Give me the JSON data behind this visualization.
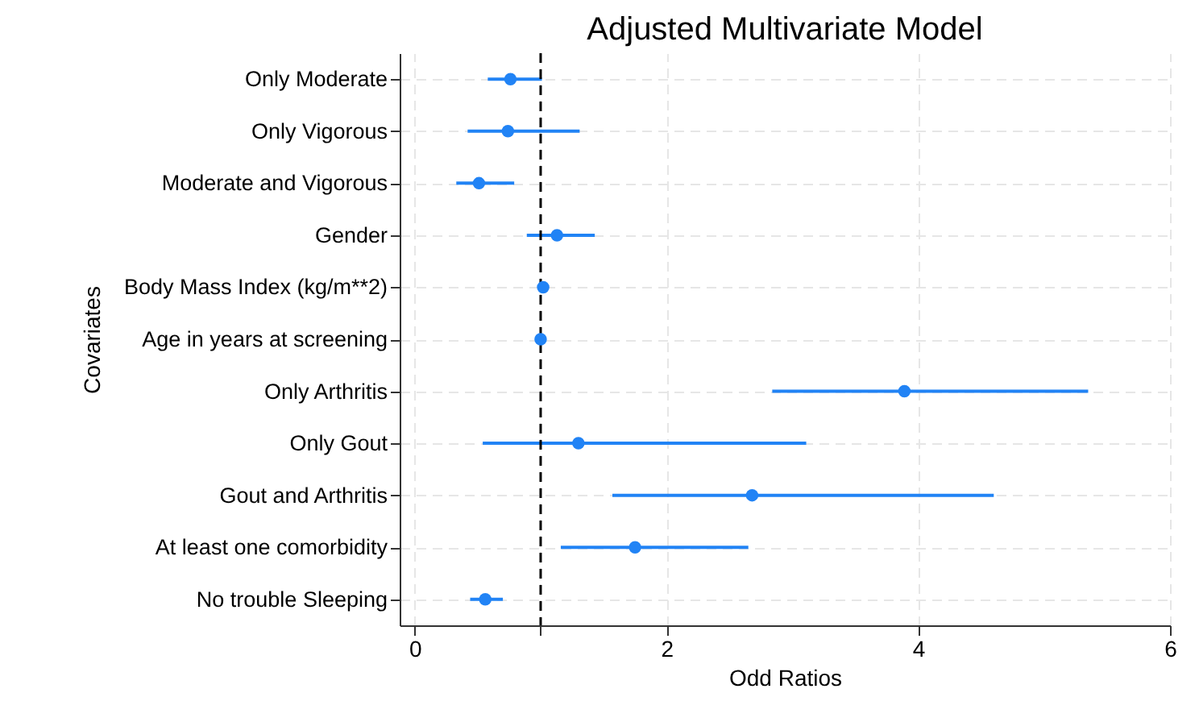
{
  "chart_data": {
    "type": "scatter",
    "title": "Adjusted Multivariate Model",
    "xlabel": "Odd Ratios",
    "ylabel": "Covariates",
    "categories": [
      "Only Moderate",
      "Only Vigorous",
      "Moderate and Vigorous",
      "Gender",
      "Body Mass Index (kg/m**2)",
      "Age in years at screening",
      "Only Arthritis",
      "Only Gout",
      "Gout and Arthritis",
      "At least one comorbidity",
      "No trouble Sleeping"
    ],
    "orientation": "horizontal",
    "series": [
      {
        "color": "#2183f5",
        "values": [
          0.76,
          0.74,
          0.51,
          1.13,
          1.02,
          1.0,
          3.89,
          1.3,
          2.68,
          1.75,
          0.56
        ],
        "errors": [
          [
            0.58,
            1.01
          ],
          [
            0.42,
            1.31
          ],
          [
            0.33,
            0.79
          ],
          [
            0.89,
            1.43
          ],
          null,
          null,
          [
            2.84,
            5.35
          ],
          [
            0.54,
            3.11
          ],
          [
            1.57,
            4.6
          ],
          [
            1.16,
            2.65
          ],
          [
            0.44,
            0.7
          ]
        ]
      }
    ],
    "xlim": [
      -0.12,
      6
    ],
    "xticks": [
      0,
      {
        "value": 1,
        "label": null
      },
      2,
      4,
      6
    ],
    "ref_lines": [
      {
        "axis": "x",
        "value": 1,
        "color": "#000000",
        "line_style": "dashed"
      }
    ],
    "grid": true,
    "marker": "circle"
  }
}
